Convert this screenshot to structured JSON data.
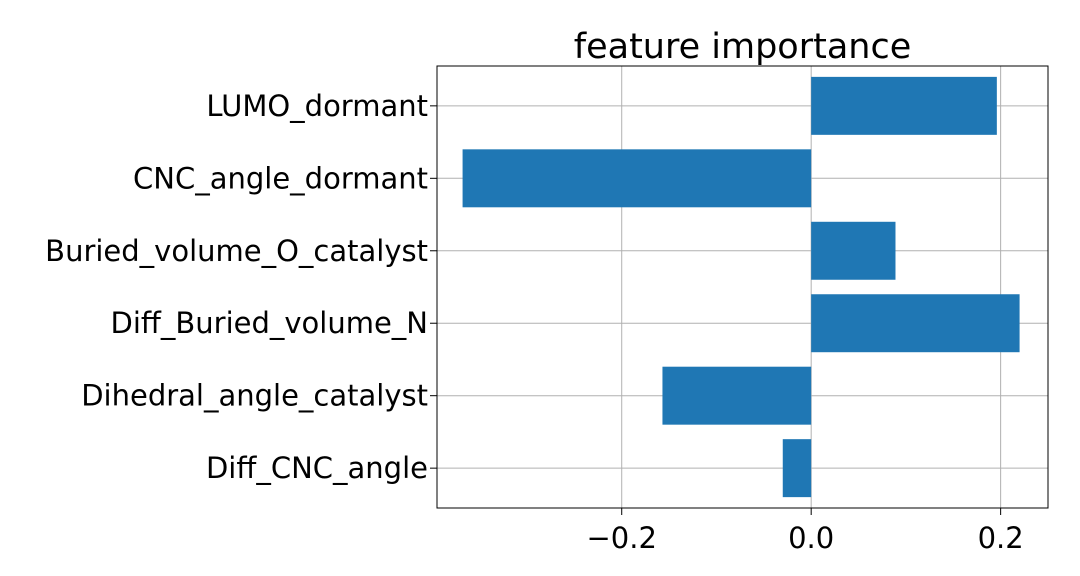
{
  "chart_data": {
    "type": "bar",
    "orientation": "horizontal",
    "title": "feature importance",
    "xlabel": "",
    "ylabel": "",
    "categories": [
      "LUMO_dormant",
      "CNC_angle_dormant",
      "Buried_volume_O_catalyst",
      "Diff_Buried_volume_N",
      "Dihedral_angle_catalyst",
      "Diff_CNC_angle"
    ],
    "values": [
      0.196,
      -0.368,
      0.089,
      0.22,
      -0.157,
      -0.03
    ],
    "xlim": [
      -0.395,
      0.25
    ],
    "xticks": [
      -0.2,
      0.0,
      0.2
    ],
    "xtick_labels": [
      "−0.2",
      "0.0",
      "0.2"
    ],
    "grid": true,
    "bar_color": "#1f77b4"
  }
}
